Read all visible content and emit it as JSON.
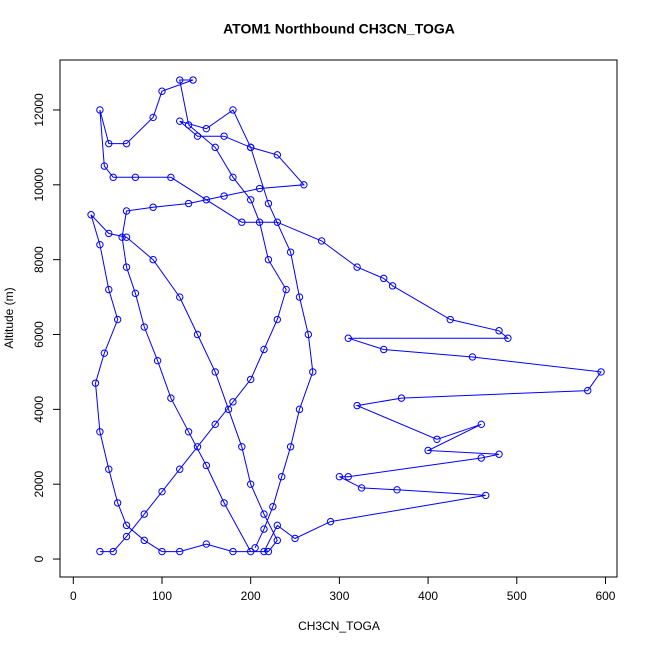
{
  "chart_data": {
    "type": "line",
    "markers": "open-circle",
    "title": "ATOM1 Northbound CH3CN_TOGA",
    "xlabel": "CH3CN_TOGA",
    "ylabel": "Altitude (m)",
    "xlim": [
      -15,
      613
    ],
    "ylim": [
      -480,
      13335
    ],
    "xticks": [
      0,
      100,
      200,
      300,
      400,
      500,
      600
    ],
    "yticks": [
      0,
      2000,
      4000,
      6000,
      8000,
      10000,
      12000
    ],
    "x": [
      30,
      45,
      60,
      80,
      100,
      120,
      140,
      160,
      180,
      200,
      215,
      230,
      240,
      220,
      210,
      200,
      180,
      160,
      130,
      120,
      135,
      100,
      90,
      60,
      40,
      30,
      35,
      45,
      70,
      110,
      150,
      190,
      230,
      280,
      320,
      350,
      360,
      425,
      480,
      490,
      310,
      350,
      450,
      595,
      580,
      370,
      320,
      410,
      460,
      400,
      480,
      460,
      310,
      300,
      325,
      365,
      465,
      290,
      250,
      230,
      215,
      180,
      150,
      120,
      100,
      80,
      60,
      50,
      40,
      30,
      25,
      35,
      50,
      40,
      30,
      20,
      40,
      60,
      90,
      120,
      140,
      160,
      175,
      190,
      200,
      215,
      230,
      220,
      200,
      170,
      150,
      130,
      110,
      95,
      80,
      70,
      60,
      55,
      60,
      90,
      130,
      170,
      210,
      260,
      230,
      200,
      170,
      140,
      120,
      150,
      180,
      200,
      220,
      245,
      255,
      265,
      270,
      255,
      245,
      235,
      225,
      215,
      205
    ],
    "series": [
      {
        "name": "CH3CN_TOGA",
        "color": "#0000ff",
        "values": [
          200,
          200,
          600,
          1200,
          1800,
          2400,
          3000,
          3600,
          4200,
          4800,
          5600,
          6400,
          7200,
          8000,
          9000,
          9600,
          10200,
          11000,
          11600,
          12800,
          12800,
          12500,
          11800,
          11100,
          11100,
          12000,
          10500,
          10200,
          10200,
          10200,
          9600,
          9000,
          9000,
          8500,
          7800,
          7500,
          7300,
          6400,
          6100,
          5900,
          5900,
          5600,
          5400,
          5000,
          4500,
          4300,
          4100,
          3200,
          3600,
          2900,
          2800,
          2700,
          2200,
          2200,
          1900,
          1850,
          1700,
          1000,
          550,
          900,
          200,
          200,
          400,
          200,
          200,
          500,
          900,
          1500,
          2400,
          3400,
          4700,
          5500,
          6400,
          7200,
          8400,
          9200,
          8700,
          8600,
          8000,
          7000,
          6000,
          5000,
          4000,
          3000,
          2000,
          1200,
          500,
          200,
          200,
          1500,
          2500,
          3400,
          4300,
          5300,
          6200,
          7100,
          7800,
          8600,
          9300,
          9400,
          9500,
          9700,
          9900,
          10000,
          10800,
          11000,
          11300,
          11300,
          11700,
          11500,
          12000,
          11000,
          9500,
          8200,
          7000,
          6000,
          5000,
          4000,
          3000,
          2200,
          1400,
          800,
          300
        ]
      }
    ]
  }
}
